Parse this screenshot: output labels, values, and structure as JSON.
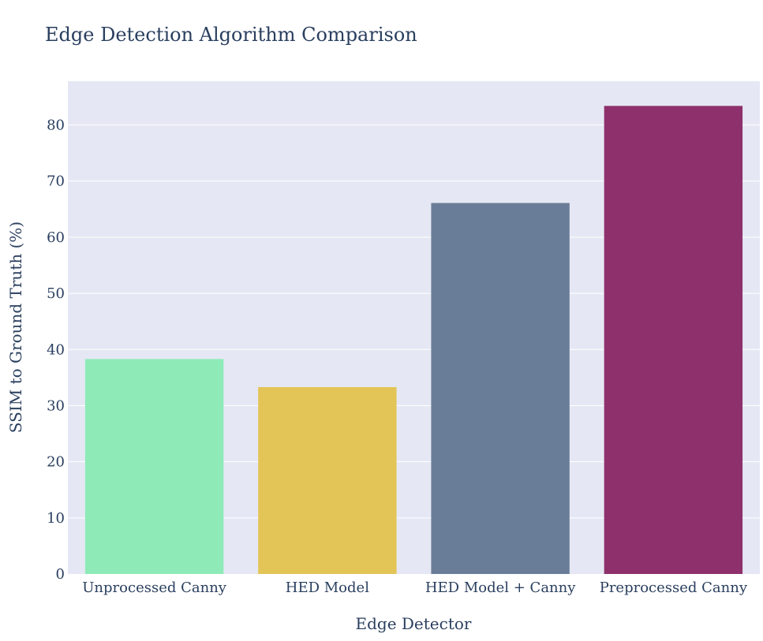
{
  "chart_data": {
    "type": "bar",
    "title": "Edge Detection Algorithm Comparison",
    "xlabel": "Edge Detector",
    "ylabel": "SSIM to Ground Truth (%)",
    "categories": [
      "Unprocessed Canny",
      "HED Model",
      "HED Model + Canny",
      "Preprocessed Canny"
    ],
    "values": [
      38.3,
      33.3,
      66.1,
      83.4
    ],
    "colors": [
      "#8eebb7",
      "#e3c457",
      "#6a7d98",
      "#8e306b"
    ],
    "ylim": [
      0,
      87.8
    ],
    "yticks": [
      0,
      10,
      20,
      30,
      40,
      50,
      60,
      70,
      80
    ],
    "grid": true,
    "plot_background": "#e5e8f4",
    "text_color": "#2a3f5f"
  }
}
